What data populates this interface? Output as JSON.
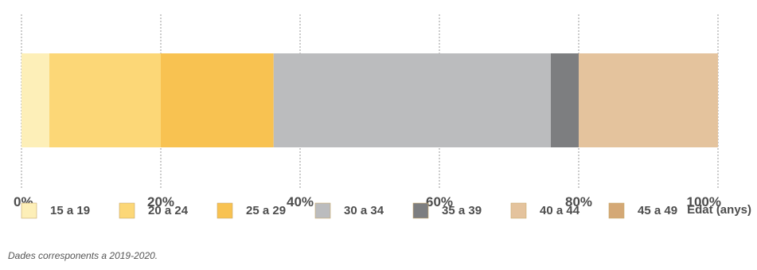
{
  "chart_data": {
    "type": "bar",
    "stacked": true,
    "orientation": "horizontal",
    "xlim": [
      0,
      100
    ],
    "x_ticks": [
      "0%",
      "20%",
      "40%",
      "60%",
      "80%",
      "100%"
    ],
    "xlabel": "Edat (anys)",
    "grid": true,
    "legend_position": "bottom",
    "series": [
      {
        "name": "15 a 19",
        "value": 4,
        "color": "#FDEFB8"
      },
      {
        "name": "20 a 24",
        "value": 16,
        "color": "#FCD777"
      },
      {
        "name": "25 a 29",
        "value": 16.2,
        "color": "#F8C251"
      },
      {
        "name": "30 a 34",
        "value": 39.8,
        "color": "#BBBCBE"
      },
      {
        "name": "35 a 39",
        "value": 4,
        "color": "#7D7E80"
      },
      {
        "name": "40 a 44",
        "value": 20,
        "color": "#E4C39D"
      },
      {
        "name": "45 a 49",
        "value": 0,
        "color": "#D4A875"
      }
    ]
  },
  "footnote": "Dades corresponents a 2019-2020."
}
